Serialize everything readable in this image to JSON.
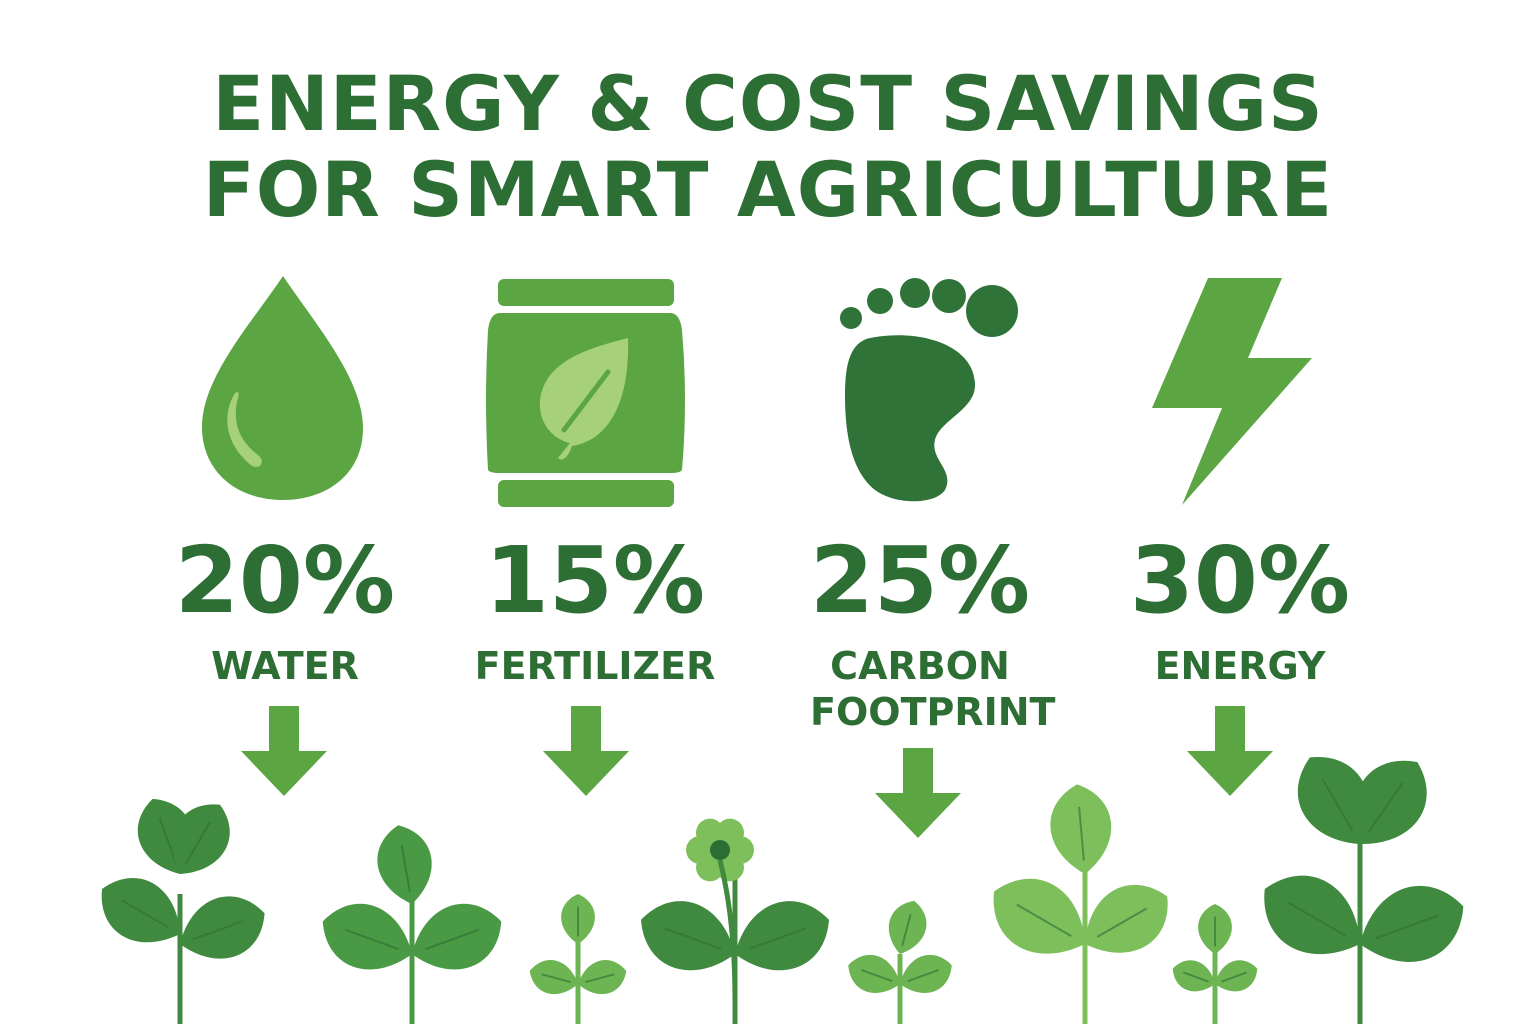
{
  "title": {
    "line1": "ENERGY & COST SAVINGS",
    "line2": "FOR SMART AGRICULTURE"
  },
  "colors": {
    "dark": "#2d6e35",
    "medium": "#5ba543",
    "light": "#a6d17a",
    "background": "#ffffff"
  },
  "metrics": [
    {
      "value": "20%",
      "label": "WATER",
      "icon": "water-drop-icon"
    },
    {
      "value": "15%",
      "label": "FERTILIZER",
      "icon": "fertilizer-bag-icon"
    },
    {
      "value": "25%",
      "label": "CARBON FOOTPRINT",
      "icon": "footprint-icon"
    },
    {
      "value": "30%",
      "label": "ENERGY",
      "icon": "lightning-bolt-icon"
    }
  ]
}
